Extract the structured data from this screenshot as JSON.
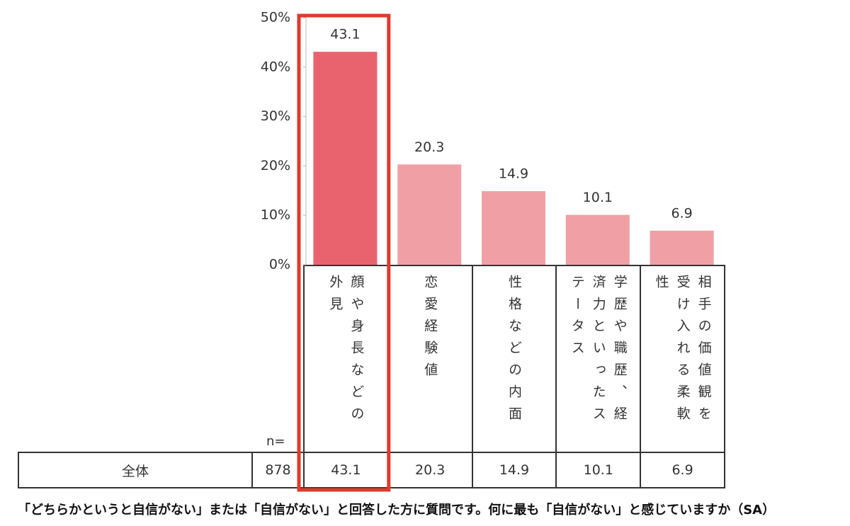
{
  "chart_data": {
    "type": "bar",
    "categories": [
      "顔や身長などの外見",
      "恋愛経験値",
      "性格などの内面",
      "学歴や職歴、経済力といったステータス",
      "相手の価値観を受け入れる柔軟性"
    ],
    "values": [
      43.1,
      20.3,
      14.9,
      10.1,
      6.9
    ],
    "colors": [
      "#e8636e",
      "#f0a0a5",
      "#f0a0a5",
      "#f0a0a5",
      "#f0a0a5"
    ],
    "ylim": [
      0,
      50
    ],
    "yticks": [
      {
        "value": 0,
        "label": "0%"
      },
      {
        "value": 10,
        "label": "10%"
      },
      {
        "value": 20,
        "label": "20%"
      },
      {
        "value": 30,
        "label": "30%"
      },
      {
        "value": 40,
        "label": "40%"
      },
      {
        "value": 50,
        "label": "50%"
      }
    ],
    "n_label": "n=",
    "row_label": "全体",
    "n": "878",
    "caption": "「どちらかというと自信がない」または「自信がない」と回答した方に質問です。何に最も「自信がない」と感じていますか（SA）"
  }
}
